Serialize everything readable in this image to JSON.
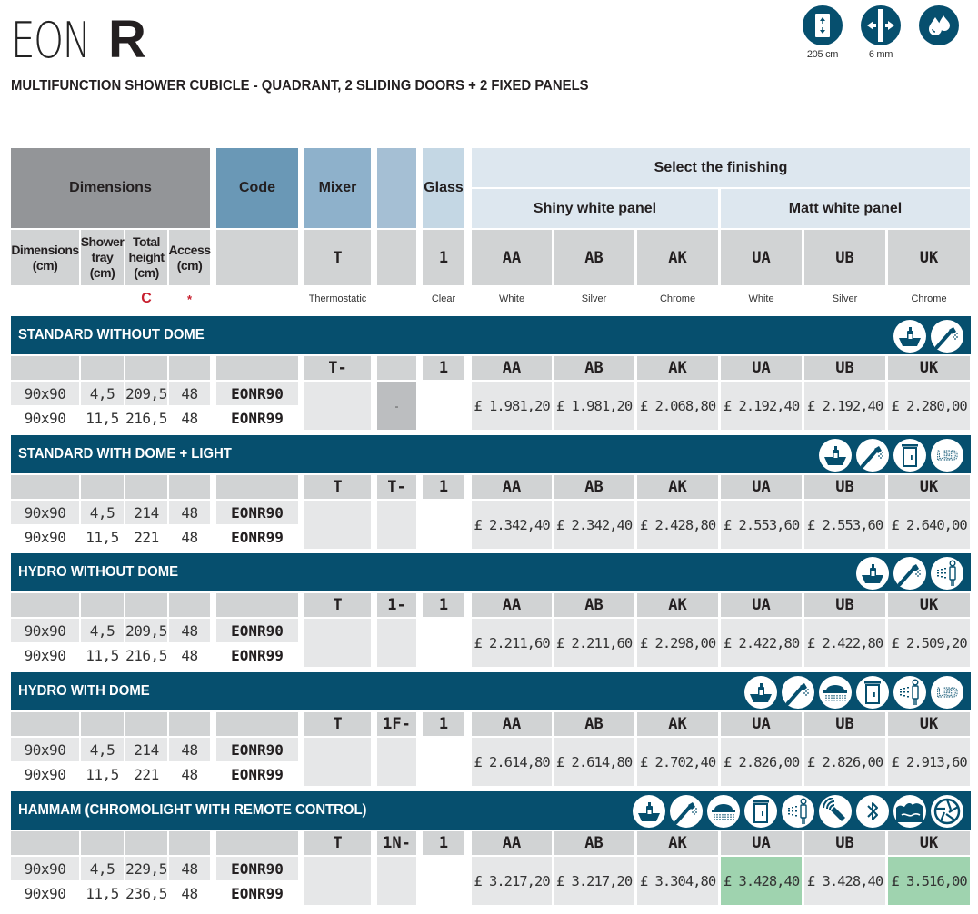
{
  "header": {
    "title_light": "EON",
    "title_bold": "R",
    "subtitle": "MULTIFUNCTION SHOWER CUBICLE - QUADRANT, 2 SLIDING DOORS + 2 FIXED PANELS",
    "specs": [
      {
        "icon": "height-arrows-icon",
        "label": "205 cm"
      },
      {
        "icon": "glass-thickness-icon",
        "label": "6 mm"
      },
      {
        "icon": "water-drops-icon",
        "label": ""
      }
    ]
  },
  "table_header": {
    "dimensions": "Dimensions",
    "code": "Code",
    "mixer": "Mixer",
    "glass": "Glass",
    "select_finishing": "Select the finishing",
    "shiny_panel": "Shiny white panel",
    "matt_panel": "Matt white panel",
    "sub": {
      "dim": "Dimensions (cm)",
      "tray": "Shower tray (cm)",
      "total": "Total height (cm)",
      "access": "Access (cm)",
      "mixer": "T",
      "glass": "1",
      "finishes": [
        "AA",
        "AB",
        "AK",
        "UA",
        "UB",
        "UK"
      ]
    },
    "notes": {
      "total": "C",
      "access": "*",
      "mixer": "Thermostatic",
      "glass": "Clear",
      "finishes": [
        "White",
        "Silver",
        "Chrome",
        "White",
        "Silver",
        "Chrome"
      ]
    }
  },
  "sections": [
    {
      "title": "STANDARD WITHOUT DOME",
      "icons": [
        "soap-dispenser-icon",
        "hand-shower-icon"
      ],
      "mixer": "T-",
      "option": "",
      "option_value": "-",
      "glass": "1",
      "finishes": [
        "AA",
        "AB",
        "AK",
        "UA",
        "UB",
        "UK"
      ],
      "rows": [
        {
          "dim": "90x90",
          "tray": "4,5",
          "total": "209,5",
          "access": "48",
          "code": "EONR90"
        },
        {
          "dim": "90x90",
          "tray": "11,5",
          "total": "216,5",
          "access": "48",
          "code": "EONR99"
        }
      ],
      "prices": [
        "£ 1.981,20",
        "£ 1.981,20",
        "£ 2.068,80",
        "£ 2.192,40",
        "£ 2.192,40",
        "£ 2.280,00"
      ],
      "highlight": []
    },
    {
      "title": "STANDARD WITH DOME + LIGHT",
      "icons": [
        "soap-dispenser-icon",
        "hand-shower-icon",
        "door-cabinet-icon",
        "led-icon"
      ],
      "mixer": "T",
      "option": "T-",
      "option_value": "",
      "glass": "1",
      "finishes": [
        "AA",
        "AB",
        "AK",
        "UA",
        "UB",
        "UK"
      ],
      "rows": [
        {
          "dim": "90x90",
          "tray": "4,5",
          "total": "214",
          "access": "48",
          "code": "EONR90"
        },
        {
          "dim": "90x90",
          "tray": "11,5",
          "total": "221",
          "access": "48",
          "code": "EONR99"
        }
      ],
      "prices": [
        "£ 2.342,40",
        "£ 2.342,40",
        "£ 2.428,80",
        "£ 2.553,60",
        "£ 2.553,60",
        "£ 2.640,00"
      ],
      "highlight": []
    },
    {
      "title": "HYDRO WITHOUT DOME",
      "icons": [
        "soap-dispenser-icon",
        "hand-shower-icon",
        "body-jets-icon"
      ],
      "mixer": "T",
      "option": "1-",
      "option_value": "",
      "glass": "1",
      "finishes": [
        "AA",
        "AB",
        "AK",
        "UA",
        "UB",
        "UK"
      ],
      "rows": [
        {
          "dim": "90x90",
          "tray": "4,5",
          "total": "209,5",
          "access": "48",
          "code": "EONR90"
        },
        {
          "dim": "90x90",
          "tray": "11,5",
          "total": "216,5",
          "access": "48",
          "code": "EONR99"
        }
      ],
      "prices": [
        "£ 2.211,60",
        "£ 2.211,60",
        "£ 2.298,00",
        "£ 2.422,80",
        "£ 2.422,80",
        "£ 2.509,20"
      ],
      "highlight": []
    },
    {
      "title": "HYDRO WITH DOME",
      "icons": [
        "soap-dispenser-icon",
        "hand-shower-icon",
        "rain-shower-icon",
        "door-cabinet-icon",
        "body-jets-icon",
        "led-icon"
      ],
      "mixer": "T",
      "option": "1F-",
      "option_value": "",
      "glass": "1",
      "finishes": [
        "AA",
        "AB",
        "AK",
        "UA",
        "UB",
        "UK"
      ],
      "rows": [
        {
          "dim": "90x90",
          "tray": "4,5",
          "total": "214",
          "access": "48",
          "code": "EONR90"
        },
        {
          "dim": "90x90",
          "tray": "11,5",
          "total": "221",
          "access": "48",
          "code": "EONR99"
        }
      ],
      "prices": [
        "£ 2.614,80",
        "£ 2.614,80",
        "£ 2.702,40",
        "£ 2.826,00",
        "£ 2.826,00",
        "£ 2.913,60"
      ],
      "highlight": []
    },
    {
      "title": "HAMMAM (CHROMOLIGHT WITH REMOTE CONTROL)",
      "icons": [
        "soap-dispenser-icon",
        "hand-shower-icon",
        "rain-shower-icon",
        "door-cabinet-icon",
        "body-jets-icon",
        "remote-control-icon",
        "bluetooth-icon",
        "steam-icon",
        "chromotherapy-icon"
      ],
      "mixer": "T",
      "option": "1N-",
      "option_value": "",
      "glass": "1",
      "finishes": [
        "AA",
        "AB",
        "AK",
        "UA",
        "UB",
        "UK"
      ],
      "rows": [
        {
          "dim": "90x90",
          "tray": "4,5",
          "total": "229,5",
          "access": "48",
          "code": "EONR90"
        },
        {
          "dim": "90x90",
          "tray": "11,5",
          "total": "236,5",
          "access": "48",
          "code": "EONR99"
        }
      ],
      "prices": [
        "£ 3.217,20",
        "£ 3.217,20",
        "£ 3.304,80",
        "£ 3.428,40",
        "£ 3.428,40",
        "£ 3.516,00"
      ],
      "highlight": [
        3,
        5
      ]
    }
  ],
  "colors": {
    "band": "#064f6e",
    "highlight": "#9fd3af",
    "accent_red": "#c8202f"
  }
}
